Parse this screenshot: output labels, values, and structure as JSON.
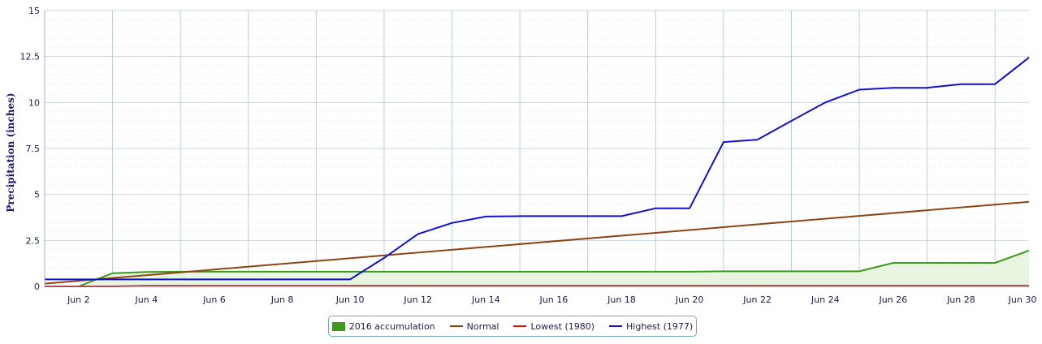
{
  "chart_data": {
    "type": "line",
    "title": "",
    "xlabel": "",
    "ylabel": "Precipitation (inches)",
    "ylim": [
      0,
      15
    ],
    "yticks": [
      "0",
      "2.5",
      "5",
      "7.5",
      "10",
      "12.5",
      "15"
    ],
    "xlim": [
      1,
      30
    ],
    "xticks": [
      {
        "day": 2,
        "label": "Jun 2"
      },
      {
        "day": 4,
        "label": "Jun 4"
      },
      {
        "day": 6,
        "label": "Jun 6"
      },
      {
        "day": 8,
        "label": "Jun 8"
      },
      {
        "day": 10,
        "label": "Jun 10"
      },
      {
        "day": 12,
        "label": "Jun 12"
      },
      {
        "day": 14,
        "label": "Jun 14"
      },
      {
        "day": 16,
        "label": "Jun 16"
      },
      {
        "day": 18,
        "label": "Jun 18"
      },
      {
        "day": 20,
        "label": "Jun 20"
      },
      {
        "day": 22,
        "label": "Jun 22"
      },
      {
        "day": 24,
        "label": "Jun 24"
      },
      {
        "day": 26,
        "label": "Jun 26"
      },
      {
        "day": 28,
        "label": "Jun 28"
      },
      {
        "day": 30,
        "label": "Jun 30"
      }
    ],
    "grid": true,
    "legend_position": "bottom-center",
    "series": [
      {
        "name": "2016 accumulation",
        "kind": "area",
        "color": "#3a9a1a",
        "fill": "#e8f5e0",
        "points": [
          [
            1,
            0
          ],
          [
            2,
            0
          ],
          [
            3,
            0.72
          ],
          [
            4,
            0.78
          ],
          [
            5,
            0.8
          ],
          [
            6,
            0.8
          ],
          [
            7,
            0.8
          ],
          [
            8,
            0.8
          ],
          [
            9,
            0.8
          ],
          [
            10,
            0.8
          ],
          [
            11,
            0.8
          ],
          [
            12,
            0.8
          ],
          [
            13,
            0.8
          ],
          [
            14,
            0.8
          ],
          [
            15,
            0.8
          ],
          [
            16,
            0.8
          ],
          [
            17,
            0.8
          ],
          [
            18,
            0.8
          ],
          [
            19,
            0.8
          ],
          [
            20,
            0.8
          ],
          [
            21,
            0.82
          ],
          [
            22,
            0.82
          ],
          [
            23,
            0.82
          ],
          [
            24,
            0.82
          ],
          [
            25,
            0.82
          ],
          [
            26,
            1.28
          ],
          [
            27,
            1.28
          ],
          [
            28,
            1.28
          ],
          [
            29,
            1.28
          ],
          [
            30,
            1.95
          ]
        ]
      },
      {
        "name": "Normal",
        "kind": "line",
        "color": "#8b4513",
        "points": [
          [
            1,
            0.15
          ],
          [
            30,
            4.6
          ]
        ]
      },
      {
        "name": "Lowest (1980)",
        "kind": "line",
        "color": "#e01010",
        "points": [
          [
            1,
            0
          ],
          [
            3,
            0
          ],
          [
            4,
            0.03
          ],
          [
            30,
            0.03
          ]
        ]
      },
      {
        "name": "Highest (1977)",
        "kind": "line",
        "color": "#1010d0",
        "points": [
          [
            1,
            0.38
          ],
          [
            10,
            0.38
          ],
          [
            11,
            1.55
          ],
          [
            12,
            2.85
          ],
          [
            13,
            3.45
          ],
          [
            14,
            3.8
          ],
          [
            15,
            3.82
          ],
          [
            16,
            3.82
          ],
          [
            17,
            3.82
          ],
          [
            18,
            3.82
          ],
          [
            19,
            4.25
          ],
          [
            20,
            4.25
          ],
          [
            21,
            7.85
          ],
          [
            22,
            7.98
          ],
          [
            23,
            9.0
          ],
          [
            24,
            10.0
          ],
          [
            25,
            10.7
          ],
          [
            26,
            10.8
          ],
          [
            27,
            10.8
          ],
          [
            28,
            11.0
          ],
          [
            29,
            11.0
          ],
          [
            30,
            12.45
          ]
        ]
      }
    ]
  },
  "legend": {
    "items": [
      {
        "label": "2016 accumulation",
        "color": "#3a9a1a",
        "style": "box"
      },
      {
        "label": "Normal",
        "color": "#8b4513",
        "style": "line"
      },
      {
        "label": "Lowest (1980)",
        "color": "#e01010",
        "style": "line"
      },
      {
        "label": "Highest (1977)",
        "color": "#1010d0",
        "style": "line"
      }
    ]
  }
}
